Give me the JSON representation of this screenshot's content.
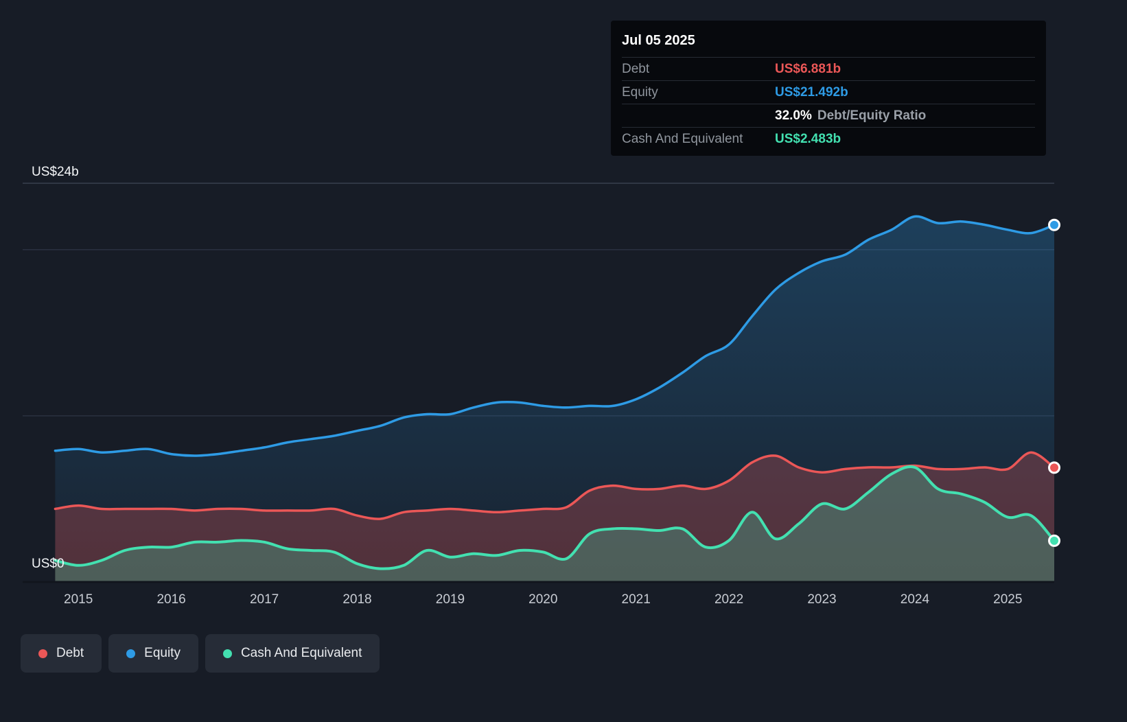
{
  "page": {
    "background": "#171c26"
  },
  "tooltip": {
    "date": "Jul 05 2025",
    "rows": [
      {
        "label": "Debt",
        "value": "US$6.881b",
        "color": "#eb5757"
      },
      {
        "label": "Equity",
        "value": "US$21.492b",
        "color": "#2e9be5"
      },
      {
        "label": "Cash And Equivalent",
        "value": "US$2.483b",
        "color": "#43e0b0"
      }
    ],
    "ratio": {
      "value": "32.0%",
      "label": "Debt/Equity Ratio"
    }
  },
  "y_axis": {
    "top_label": "US$24b",
    "zero_label": "US$0"
  },
  "legend": [
    {
      "label": "Debt",
      "color": "#eb5757"
    },
    {
      "label": "Equity",
      "color": "#2e9be5"
    },
    {
      "label": "Cash And Equivalent",
      "color": "#43e0b0"
    }
  ],
  "chart_data": {
    "type": "area",
    "title": "",
    "unit": "US$ billions",
    "ylim": [
      0,
      24
    ],
    "x_domain": [
      2014.4,
      2025.5
    ],
    "gridlines": [
      10,
      20,
      24
    ],
    "baseline": 0,
    "legend_position": "bottom-left",
    "end_markers": true,
    "x_ticks": [
      "2015",
      "2016",
      "2017",
      "2018",
      "2019",
      "2020",
      "2021",
      "2022",
      "2023",
      "2024",
      "2025"
    ],
    "x": [
      2014.75,
      2015.0,
      2015.25,
      2015.5,
      2015.75,
      2016.0,
      2016.25,
      2016.5,
      2016.75,
      2017.0,
      2017.25,
      2017.5,
      2017.75,
      2018.0,
      2018.25,
      2018.5,
      2018.75,
      2019.0,
      2019.25,
      2019.5,
      2019.75,
      2020.0,
      2020.25,
      2020.5,
      2020.75,
      2021.0,
      2021.25,
      2021.5,
      2021.75,
      2022.0,
      2022.25,
      2022.5,
      2022.75,
      2023.0,
      2023.25,
      2023.5,
      2023.75,
      2024.0,
      2024.25,
      2024.5,
      2024.75,
      2025.0,
      2025.25,
      2025.5
    ],
    "series": [
      {
        "name": "Equity",
        "color": "#2e9be5",
        "line_width": 3.5,
        "fill_opacity": 0.28,
        "values": [
          7.9,
          8.0,
          7.8,
          7.9,
          8.0,
          7.7,
          7.6,
          7.7,
          7.9,
          8.1,
          8.4,
          8.6,
          8.8,
          9.1,
          9.4,
          9.9,
          10.1,
          10.1,
          10.5,
          10.8,
          10.8,
          10.6,
          10.5,
          10.6,
          10.6,
          11.0,
          11.7,
          12.6,
          13.6,
          14.3,
          16.0,
          17.6,
          18.6,
          19.3,
          19.7,
          20.6,
          21.2,
          22.0,
          21.6,
          21.7,
          21.5,
          21.2,
          21.0,
          21.492
        ]
      },
      {
        "name": "Debt",
        "color": "#eb5757",
        "line_width": 3.5,
        "fill_opacity": 0.28,
        "values": [
          4.4,
          4.6,
          4.4,
          4.4,
          4.4,
          4.4,
          4.3,
          4.4,
          4.4,
          4.3,
          4.3,
          4.3,
          4.4,
          4.0,
          3.8,
          4.2,
          4.3,
          4.4,
          4.3,
          4.2,
          4.3,
          4.4,
          4.5,
          5.5,
          5.8,
          5.6,
          5.6,
          5.8,
          5.6,
          6.1,
          7.2,
          7.6,
          6.9,
          6.6,
          6.8,
          6.9,
          6.9,
          7.0,
          6.8,
          6.8,
          6.9,
          6.8,
          7.8,
          6.881
        ]
      },
      {
        "name": "Cash And Equivalent",
        "color": "#43e0b0",
        "line_width": 4,
        "fill_opacity": 0.26,
        "values": [
          1.3,
          1.0,
          1.3,
          1.9,
          2.1,
          2.1,
          2.4,
          2.4,
          2.5,
          2.4,
          2.0,
          1.9,
          1.8,
          1.1,
          0.8,
          1.0,
          1.9,
          1.5,
          1.7,
          1.6,
          1.9,
          1.8,
          1.4,
          2.9,
          3.2,
          3.2,
          3.1,
          3.2,
          2.1,
          2.5,
          4.2,
          2.6,
          3.5,
          4.7,
          4.4,
          5.4,
          6.5,
          6.9,
          5.6,
          5.3,
          4.8,
          3.9,
          4.0,
          2.483
        ]
      }
    ]
  }
}
